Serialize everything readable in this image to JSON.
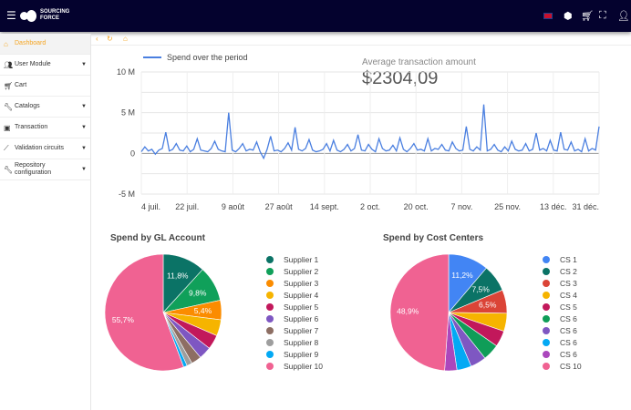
{
  "header": {
    "brand": "SOURCING FORCE",
    "icons": [
      "menu-icon",
      "uk-flag-icon",
      "package-icon",
      "cart-icon",
      "fullscreen-icon",
      "user-icon"
    ]
  },
  "sidebar": {
    "items": [
      {
        "label": "Dashboard",
        "icon": "home-icon",
        "active": true,
        "expandable": false
      },
      {
        "label": "User Module",
        "icon": "users-icon",
        "expandable": true
      },
      {
        "label": "Cart",
        "icon": "cart-icon",
        "expandable": false
      },
      {
        "label": "Catalogs",
        "icon": "wrench-icon",
        "expandable": true
      },
      {
        "label": "Transaction",
        "icon": "calendar-icon",
        "expandable": true
      },
      {
        "label": "Validation circuits",
        "icon": "trend-icon",
        "expandable": true
      },
      {
        "label": "Repository configuration",
        "icon": "wrench-icon",
        "expandable": true
      }
    ]
  },
  "accent": "#f5a623",
  "kpi": {
    "label": "Average transaction amount",
    "value": "$2304,09"
  },
  "chart_data": [
    {
      "type": "line",
      "legend": "Spend over the period",
      "color": "#4a7fe0",
      "yticks": [
        "10 M",
        "5 M",
        "0",
        "-5 M"
      ],
      "ylim": [
        -5,
        10
      ],
      "xticks": [
        "4 juil.",
        "22 juil.",
        "9 août",
        "27 août",
        "14 sept.",
        "2 oct.",
        "20 oct.",
        "7 nov.",
        "25 nov.",
        "13 déc.",
        "31 déc."
      ],
      "values": [
        0.2,
        0.8,
        0.3,
        0.5,
        -0.1,
        0.4,
        0.6,
        2.6,
        0.3,
        0.5,
        1.2,
        0.4,
        0.3,
        0.9,
        0.2,
        0.5,
        1.8,
        0.4,
        0.3,
        0.2,
        0.6,
        1.5,
        0.5,
        0.3,
        0.2,
        5.0,
        0.4,
        0.2,
        0.6,
        1.2,
        0.3,
        0.5,
        0.4,
        1.4,
        0.2,
        -0.6,
        0.5,
        2.1,
        0.3,
        0.4,
        0.2,
        0.6,
        1.3,
        0.4,
        3.2,
        0.5,
        0.3,
        0.6,
        1.7,
        0.4,
        0.2,
        0.3,
        0.5,
        1.2,
        0.3,
        1.6,
        0.4,
        0.2,
        0.5,
        1.1,
        0.3,
        0.6,
        2.3,
        0.4,
        0.3,
        1.1,
        0.5,
        0.2,
        1.8,
        0.6,
        0.3,
        0.4,
        1.0,
        0.3,
        1.9,
        0.5,
        0.2,
        0.6,
        1.2,
        0.4,
        0.5,
        0.3,
        1.8,
        0.3,
        0.6,
        0.5,
        1.1,
        0.4,
        0.3,
        1.4,
        0.6,
        0.3,
        0.4,
        3.3,
        0.5,
        0.3,
        0.8,
        0.4,
        6.0,
        0.3,
        0.5,
        1.1,
        0.4,
        0.2,
        0.8,
        0.3,
        1.5,
        0.5,
        0.3,
        0.4,
        1.2,
        0.3,
        0.5,
        2.5,
        0.4,
        0.6,
        0.3,
        1.6,
        0.4,
        0.3,
        2.6,
        0.5,
        0.4,
        1.4,
        0.3,
        0.5,
        0.2,
        1.8,
        0.3,
        0.6,
        0.4,
        3.3
      ]
    },
    {
      "type": "pie",
      "title": "Spend by GL Account",
      "labels": [
        "Supplier 1",
        "Supplier 2",
        "Supplier 3",
        "Supplier 4",
        "Supplier 5",
        "Supplier 6",
        "Supplier 7",
        "Supplier 8",
        "Supplier 9",
        "Supplier 10"
      ],
      "values": [
        11.8,
        9.8,
        5.4,
        4.5,
        4.0,
        3.5,
        2.8,
        1.5,
        1.0,
        55.7
      ],
      "data_labels": [
        "11,8%",
        "9,8%",
        "5,4%",
        "",
        "",
        "",
        "",
        "",
        "",
        "55,7%"
      ],
      "colors": [
        "#0b7366",
        "#10a05a",
        "#fb8c00",
        "#f6b400",
        "#c2185b",
        "#7e57c2",
        "#8d6e63",
        "#9e9e9e",
        "#03a9f4",
        "#f06292"
      ]
    },
    {
      "type": "pie",
      "title": "Spend by Cost Centers",
      "labels": [
        "CS 1",
        "CS 2",
        "CS 3",
        "CS 4",
        "CS 5",
        "CS 6",
        "CS 6",
        "CS 6",
        "CS 6",
        "CS 10"
      ],
      "values": [
        11.2,
        7.5,
        6.5,
        5.0,
        4.5,
        4.6,
        4.4,
        4.0,
        3.4,
        48.9
      ],
      "data_labels": [
        "11,2%",
        "7,5%",
        "6,5%",
        "",
        "",
        "",
        "",
        "",
        "",
        "48,9%"
      ],
      "colors": [
        "#4285f4",
        "#0b7366",
        "#db4437",
        "#f6b400",
        "#c2185b",
        "#0f9d58",
        "#7e57c2",
        "#03a9f4",
        "#ab47bc",
        "#f06292"
      ]
    }
  ]
}
